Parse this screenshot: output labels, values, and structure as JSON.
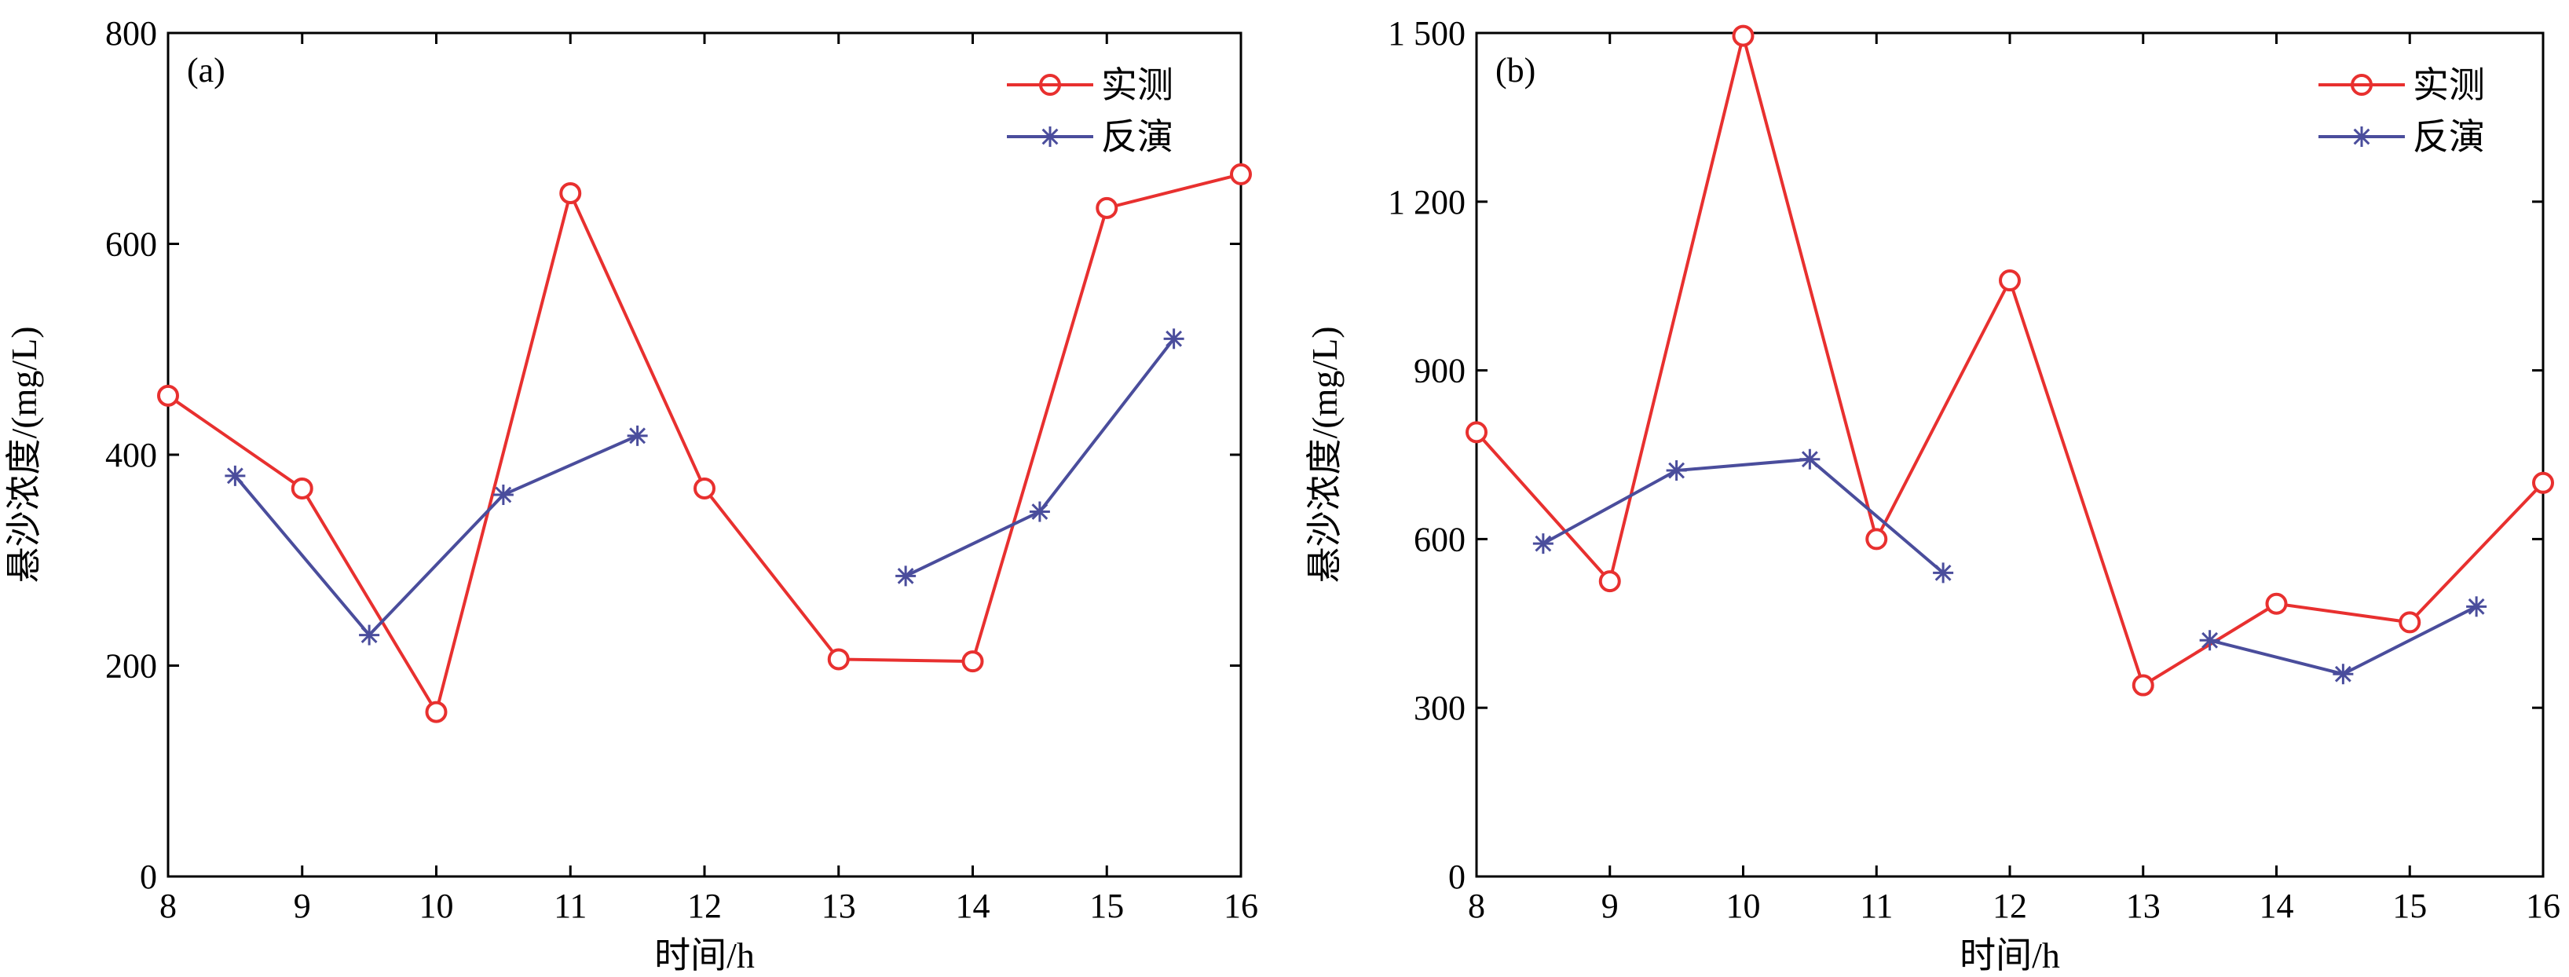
{
  "figure": {
    "panels": [
      {
        "panel_label": "(a)",
        "xlabel": "时间/h",
        "ylabel": "悬沙浓度/(mg/L)",
        "x_ticks": [
          "8",
          "9",
          "10",
          "11",
          "12",
          "13",
          "14",
          "15",
          "16"
        ],
        "y_ticks": [
          "0",
          "200",
          "400",
          "600",
          "800"
        ],
        "legend": {
          "measured": "实测",
          "inverted": "反演"
        }
      },
      {
        "panel_label": "(b)",
        "xlabel": "时间/h",
        "ylabel": "悬沙浓度/(mg/L)",
        "x_ticks": [
          "8",
          "9",
          "10",
          "11",
          "12",
          "13",
          "14",
          "15",
          "16"
        ],
        "y_ticks": [
          "0",
          "300",
          "600",
          "900",
          "1 200",
          "1 500"
        ],
        "legend": {
          "measured": "实测",
          "inverted": "反演"
        }
      }
    ]
  },
  "colors": {
    "measured": "#e8302f",
    "inverted": "#4a4d9c"
  },
  "chart_data": [
    {
      "type": "line",
      "panel": "(a)",
      "xlabel": "时间/h",
      "ylabel": "悬沙浓度/(mg/L)",
      "xlim": [
        8,
        16
      ],
      "ylim": [
        0,
        800
      ],
      "legend_position": "top-right",
      "grid": false,
      "series": [
        {
          "name": "实测",
          "marker": "circle",
          "segments": [
            [
              [
                8,
                456
              ],
              [
                9,
                368
              ],
              [
                10,
                156
              ],
              [
                11,
                648
              ],
              [
                12,
                368
              ],
              [
                13,
                206
              ],
              [
                14,
                204
              ],
              [
                15,
                634
              ],
              [
                16,
                666
              ]
            ]
          ]
        },
        {
          "name": "反演",
          "marker": "asterisk",
          "segments": [
            [
              [
                8.5,
                380
              ],
              [
                9.5,
                229
              ],
              [
                10.5,
                362
              ],
              [
                11.5,
                418
              ]
            ],
            [
              [
                13.5,
                285
              ],
              [
                14.5,
                346
              ],
              [
                15.5,
                510
              ]
            ]
          ]
        }
      ]
    },
    {
      "type": "line",
      "panel": "(b)",
      "xlabel": "时间/h",
      "ylabel": "悬沙浓度/(mg/L)",
      "xlim": [
        8,
        16
      ],
      "ylim": [
        0,
        1500
      ],
      "legend_position": "top-right",
      "grid": false,
      "series": [
        {
          "name": "实测",
          "marker": "circle",
          "segments": [
            [
              [
                8,
                790
              ],
              [
                9,
                525
              ],
              [
                10,
                1495
              ],
              [
                11,
                600
              ],
              [
                12,
                1060
              ],
              [
                13,
                340
              ],
              [
                14,
                485
              ],
              [
                15,
                452
              ],
              [
                16,
                700
              ]
            ]
          ]
        },
        {
          "name": "反演",
          "marker": "asterisk",
          "segments": [
            [
              [
                8.5,
                592
              ],
              [
                9.5,
                722
              ],
              [
                10.5,
                742
              ],
              [
                11.5,
                540
              ]
            ],
            [
              [
                13.5,
                420
              ],
              [
                14.5,
                360
              ],
              [
                15.5,
                480
              ]
            ]
          ]
        }
      ]
    }
  ]
}
